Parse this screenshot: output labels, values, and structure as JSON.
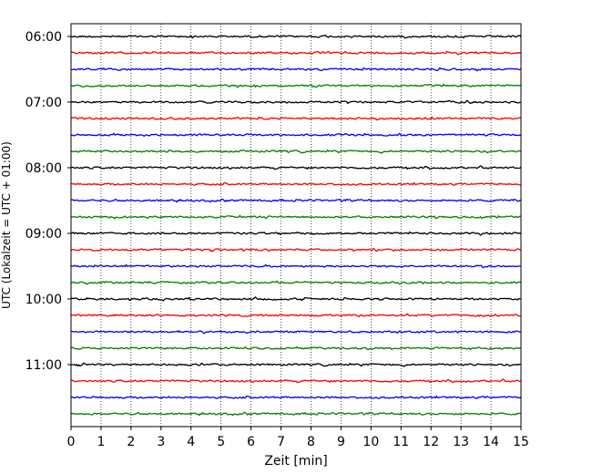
{
  "chart_data": {
    "type": "line",
    "chart_kind": "helicorder seismogram",
    "xlabel": "Zeit  [min]",
    "ylabel": "UTC (Lokalzeit = UTC + 01:00)",
    "xlim": [
      0,
      15
    ],
    "x_ticks": [
      "0",
      "1",
      "2",
      "3",
      "4",
      "5",
      "6",
      "7",
      "8",
      "9",
      "10",
      "11",
      "12",
      "13",
      "14",
      "15"
    ],
    "y_tick_labels": [
      "06:00",
      "07:00",
      "08:00",
      "09:00",
      "10:00",
      "11:00"
    ],
    "start_time": "06:00",
    "trace_interval_minutes": 15,
    "trace_count": 24,
    "trace_colors": [
      "#000000",
      "#ff0000",
      "#0000ff",
      "#008000"
    ],
    "grid": {
      "x": true,
      "y": false,
      "style": "dotted"
    },
    "legend": "none"
  }
}
